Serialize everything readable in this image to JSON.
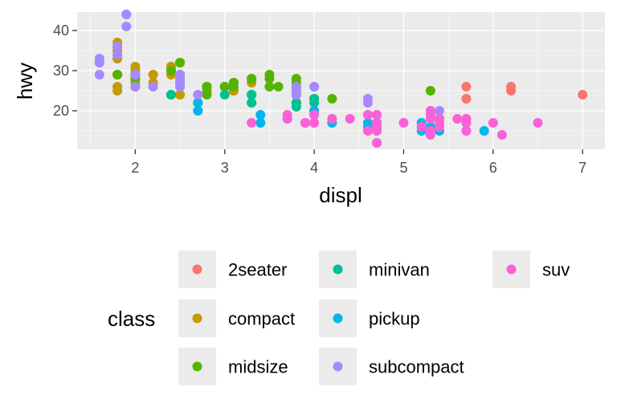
{
  "chart_data": {
    "type": "scatter",
    "title": "",
    "xlabel": "displ",
    "ylabel": "hwy",
    "xlim": [
      1.35,
      7.25
    ],
    "ylim": [
      10.4,
      44.6
    ],
    "x_ticks": [
      2,
      3,
      4,
      5,
      6,
      7
    ],
    "y_ticks": [
      20,
      30,
      40
    ],
    "grid": true,
    "legend": {
      "title": "class",
      "position": "bottom"
    },
    "series": [
      {
        "name": "2seater",
        "color": "#F8766D",
        "points": [
          [
            5.7,
            26
          ],
          [
            5.7,
            23
          ],
          [
            6.2,
            26
          ],
          [
            6.2,
            25
          ],
          [
            7.0,
            24
          ]
        ]
      },
      {
        "name": "compact",
        "color": "#C49A00",
        "points": [
          [
            1.8,
            29
          ],
          [
            1.8,
            29
          ],
          [
            2.0,
            31
          ],
          [
            2.0,
            30
          ],
          [
            2.8,
            26
          ],
          [
            2.8,
            26
          ],
          [
            3.1,
            27
          ],
          [
            1.8,
            26
          ],
          [
            1.8,
            25
          ],
          [
            2.0,
            28
          ],
          [
            2.0,
            27
          ],
          [
            2.8,
            25
          ],
          [
            2.8,
            25
          ],
          [
            3.1,
            25
          ],
          [
            3.1,
            25
          ],
          [
            2.2,
            27
          ],
          [
            2.2,
            29
          ],
          [
            2.4,
            31
          ],
          [
            2.4,
            31
          ],
          [
            3.0,
            26
          ],
          [
            3.0,
            26
          ],
          [
            3.3,
            27
          ],
          [
            1.8,
            29
          ],
          [
            1.8,
            29
          ],
          [
            1.8,
            33
          ],
          [
            1.8,
            35
          ],
          [
            1.8,
            37
          ],
          [
            1.8,
            35
          ],
          [
            2.0,
            29
          ],
          [
            2.0,
            26
          ],
          [
            2.0,
            29
          ],
          [
            2.0,
            29
          ],
          [
            2.5,
            24
          ],
          [
            2.5,
            28
          ],
          [
            2.5,
            29
          ],
          [
            2.4,
            30
          ],
          [
            2.4,
            29
          ],
          [
            2.5,
            29
          ],
          [
            2.5,
            29
          ]
        ]
      },
      {
        "name": "midsize",
        "color": "#53B400",
        "points": [
          [
            2.8,
            24
          ],
          [
            3.1,
            26
          ],
          [
            4.2,
            23
          ],
          [
            2.4,
            30
          ],
          [
            2.4,
            24
          ],
          [
            2.5,
            27
          ],
          [
            2.5,
            32
          ],
          [
            3.3,
            28
          ],
          [
            3.3,
            22
          ],
          [
            3.3,
            28
          ],
          [
            3.8,
            26
          ],
          [
            3.8,
            22
          ],
          [
            3.8,
            28
          ],
          [
            3.8,
            26
          ],
          [
            3.8,
            22
          ],
          [
            2.5,
            26
          ],
          [
            3.5,
            29
          ],
          [
            3.5,
            28
          ],
          [
            3.0,
            26
          ],
          [
            3.3,
            24
          ],
          [
            3.5,
            26
          ],
          [
            3.6,
            26
          ],
          [
            3.8,
            27
          ],
          [
            4.0,
            20
          ],
          [
            4.0,
            23
          ],
          [
            5.3,
            25
          ],
          [
            2.0,
            28
          ],
          [
            2.0,
            29
          ],
          [
            2.8,
            26
          ],
          [
            3.0,
            26
          ],
          [
            3.1,
            27
          ],
          [
            1.8,
            29
          ],
          [
            2.5,
            32
          ]
        ]
      },
      {
        "name": "minivan",
        "color": "#00C094",
        "points": [
          [
            2.4,
            24
          ],
          [
            3.0,
            24
          ],
          [
            3.3,
            22
          ],
          [
            3.3,
            24
          ],
          [
            3.3,
            24
          ],
          [
            3.8,
            22
          ],
          [
            3.8,
            21
          ],
          [
            3.8,
            24
          ],
          [
            4.0,
            22
          ],
          [
            4.0,
            23
          ]
        ]
      },
      {
        "name": "pickup",
        "color": "#00B6EB",
        "points": [
          [
            2.7,
            20
          ],
          [
            2.7,
            22
          ],
          [
            3.4,
            17
          ],
          [
            3.4,
            19
          ],
          [
            3.7,
            18
          ],
          [
            3.9,
            17
          ],
          [
            3.9,
            17
          ],
          [
            4.2,
            17
          ],
          [
            4.7,
            17
          ],
          [
            4.7,
            16
          ],
          [
            4.7,
            16
          ],
          [
            5.2,
            16
          ],
          [
            5.2,
            15
          ],
          [
            5.7,
            17
          ],
          [
            5.9,
            15
          ],
          [
            4.7,
            12
          ],
          [
            5.2,
            17
          ],
          [
            5.3,
            16
          ],
          [
            5.4,
            15
          ],
          [
            4.0,
            20
          ],
          [
            4.7,
            17
          ],
          [
            5.7,
            17
          ],
          [
            4.6,
            16
          ],
          [
            5.4,
            17
          ],
          [
            2.7,
            20
          ],
          [
            2.7,
            22
          ],
          [
            4.0,
            19
          ],
          [
            4.0,
            20
          ],
          [
            4.6,
            17
          ]
        ]
      },
      {
        "name": "subcompact",
        "color": "#A58AFF",
        "points": [
          [
            1.6,
            33
          ],
          [
            1.6,
            32
          ],
          [
            1.6,
            32
          ],
          [
            1.6,
            29
          ],
          [
            1.6,
            32
          ],
          [
            1.8,
            34
          ],
          [
            1.8,
            36
          ],
          [
            1.8,
            36
          ],
          [
            2.0,
            29
          ],
          [
            1.9,
            44
          ],
          [
            1.9,
            44
          ],
          [
            1.9,
            41
          ],
          [
            2.0,
            26
          ],
          [
            2.2,
            26
          ],
          [
            2.5,
            26
          ],
          [
            2.5,
            28
          ],
          [
            2.5,
            29
          ],
          [
            2.5,
            27
          ],
          [
            2.7,
            24
          ],
          [
            3.8,
            24
          ],
          [
            3.8,
            25
          ],
          [
            4.0,
            26
          ],
          [
            4.6,
            23
          ],
          [
            4.6,
            22
          ],
          [
            5.4,
            20
          ],
          [
            3.8,
            26
          ],
          [
            3.8,
            25
          ],
          [
            4.0,
            26
          ]
        ]
      },
      {
        "name": "suv",
        "color": "#FB61D7",
        "points": [
          [
            5.3,
            20
          ],
          [
            5.3,
            15
          ],
          [
            5.3,
            20
          ],
          [
            5.7,
            17
          ],
          [
            6.0,
            17
          ],
          [
            5.3,
            19
          ],
          [
            5.3,
            14
          ],
          [
            5.7,
            15
          ],
          [
            6.5,
            17
          ],
          [
            3.7,
            18
          ],
          [
            3.7,
            19
          ],
          [
            3.9,
            17
          ],
          [
            3.9,
            17
          ],
          [
            4.7,
            17
          ],
          [
            4.7,
            15
          ],
          [
            4.7,
            12
          ],
          [
            5.2,
            16
          ],
          [
            5.7,
            18
          ],
          [
            5.7,
            18
          ],
          [
            4.7,
            19
          ],
          [
            4.7,
            19
          ],
          [
            4.0,
            17
          ],
          [
            4.0,
            19
          ],
          [
            4.6,
            19
          ],
          [
            5.0,
            17
          ],
          [
            4.2,
            18
          ],
          [
            4.2,
            18
          ],
          [
            4.4,
            18
          ],
          [
            4.6,
            19
          ],
          [
            5.4,
            17
          ],
          [
            5.4,
            16
          ],
          [
            5.4,
            18
          ],
          [
            4.0,
            17
          ],
          [
            4.7,
            15
          ],
          [
            4.7,
            16
          ],
          [
            5.7,
            15
          ],
          [
            6.1,
            14
          ],
          [
            5.3,
            18
          ],
          [
            5.4,
            18
          ],
          [
            3.3,
            17
          ],
          [
            4.6,
            15
          ],
          [
            5.6,
            18
          ]
        ]
      }
    ]
  }
}
